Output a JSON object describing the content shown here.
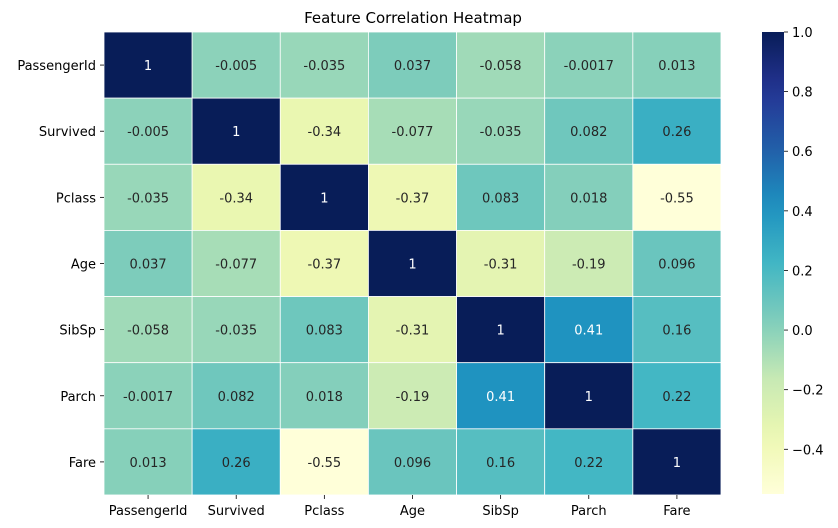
{
  "chart_data": {
    "type": "heatmap",
    "title": "Feature Correlation Heatmap",
    "xlabel": "",
    "ylabel": "",
    "x_categories": [
      "PassengerId",
      "Survived",
      "Pclass",
      "Age",
      "SibSp",
      "Parch",
      "Fare"
    ],
    "y_categories": [
      "PassengerId",
      "Survived",
      "Pclass",
      "Age",
      "SibSp",
      "Parch",
      "Fare"
    ],
    "values": [
      [
        1,
        -0.005,
        -0.035,
        0.037,
        -0.058,
        -0.0017,
        0.013
      ],
      [
        -0.005,
        1,
        -0.34,
        -0.077,
        -0.035,
        0.082,
        0.26
      ],
      [
        -0.035,
        -0.34,
        1,
        -0.37,
        0.083,
        0.018,
        -0.55
      ],
      [
        0.037,
        -0.077,
        -0.37,
        1,
        -0.31,
        -0.19,
        0.096
      ],
      [
        -0.058,
        -0.035,
        0.083,
        -0.31,
        1,
        0.41,
        0.16
      ],
      [
        -0.0017,
        0.082,
        0.018,
        -0.19,
        0.41,
        1,
        0.22
      ],
      [
        0.013,
        0.26,
        -0.55,
        0.096,
        0.16,
        0.22,
        1
      ]
    ],
    "annotations": [
      [
        "1",
        "-0.005",
        "-0.035",
        "0.037",
        "-0.058",
        "-0.0017",
        "0.013"
      ],
      [
        "-0.005",
        "1",
        "-0.34",
        "-0.077",
        "-0.035",
        "0.082",
        "0.26"
      ],
      [
        "-0.035",
        "-0.34",
        "1",
        "-0.37",
        "0.083",
        "0.018",
        "-0.55"
      ],
      [
        "0.037",
        "-0.077",
        "-0.37",
        "1",
        "-0.31",
        "-0.19",
        "0.096"
      ],
      [
        "-0.058",
        "-0.035",
        "0.083",
        "-0.31",
        "1",
        "0.41",
        "0.16"
      ],
      [
        "-0.0017",
        "0.082",
        "0.018",
        "-0.19",
        "0.41",
        "1",
        "0.22"
      ],
      [
        "0.013",
        "0.26",
        "-0.55",
        "0.096",
        "0.16",
        "0.22",
        "1"
      ]
    ],
    "colormap": "YlGnBu",
    "color_range": [
      -0.55,
      1
    ],
    "colorbar_ticks": [
      1.0,
      0.8,
      0.6,
      0.4,
      0.2,
      0.0,
      -0.2,
      -0.4
    ],
    "colorbar_tick_labels": [
      "1.0",
      "0.8",
      "0.6",
      "0.4",
      "0.2",
      "0.0",
      "−0.2",
      "−0.4"
    ],
    "cell_border_color": "#ffffff",
    "legend": "colorbar-right"
  }
}
